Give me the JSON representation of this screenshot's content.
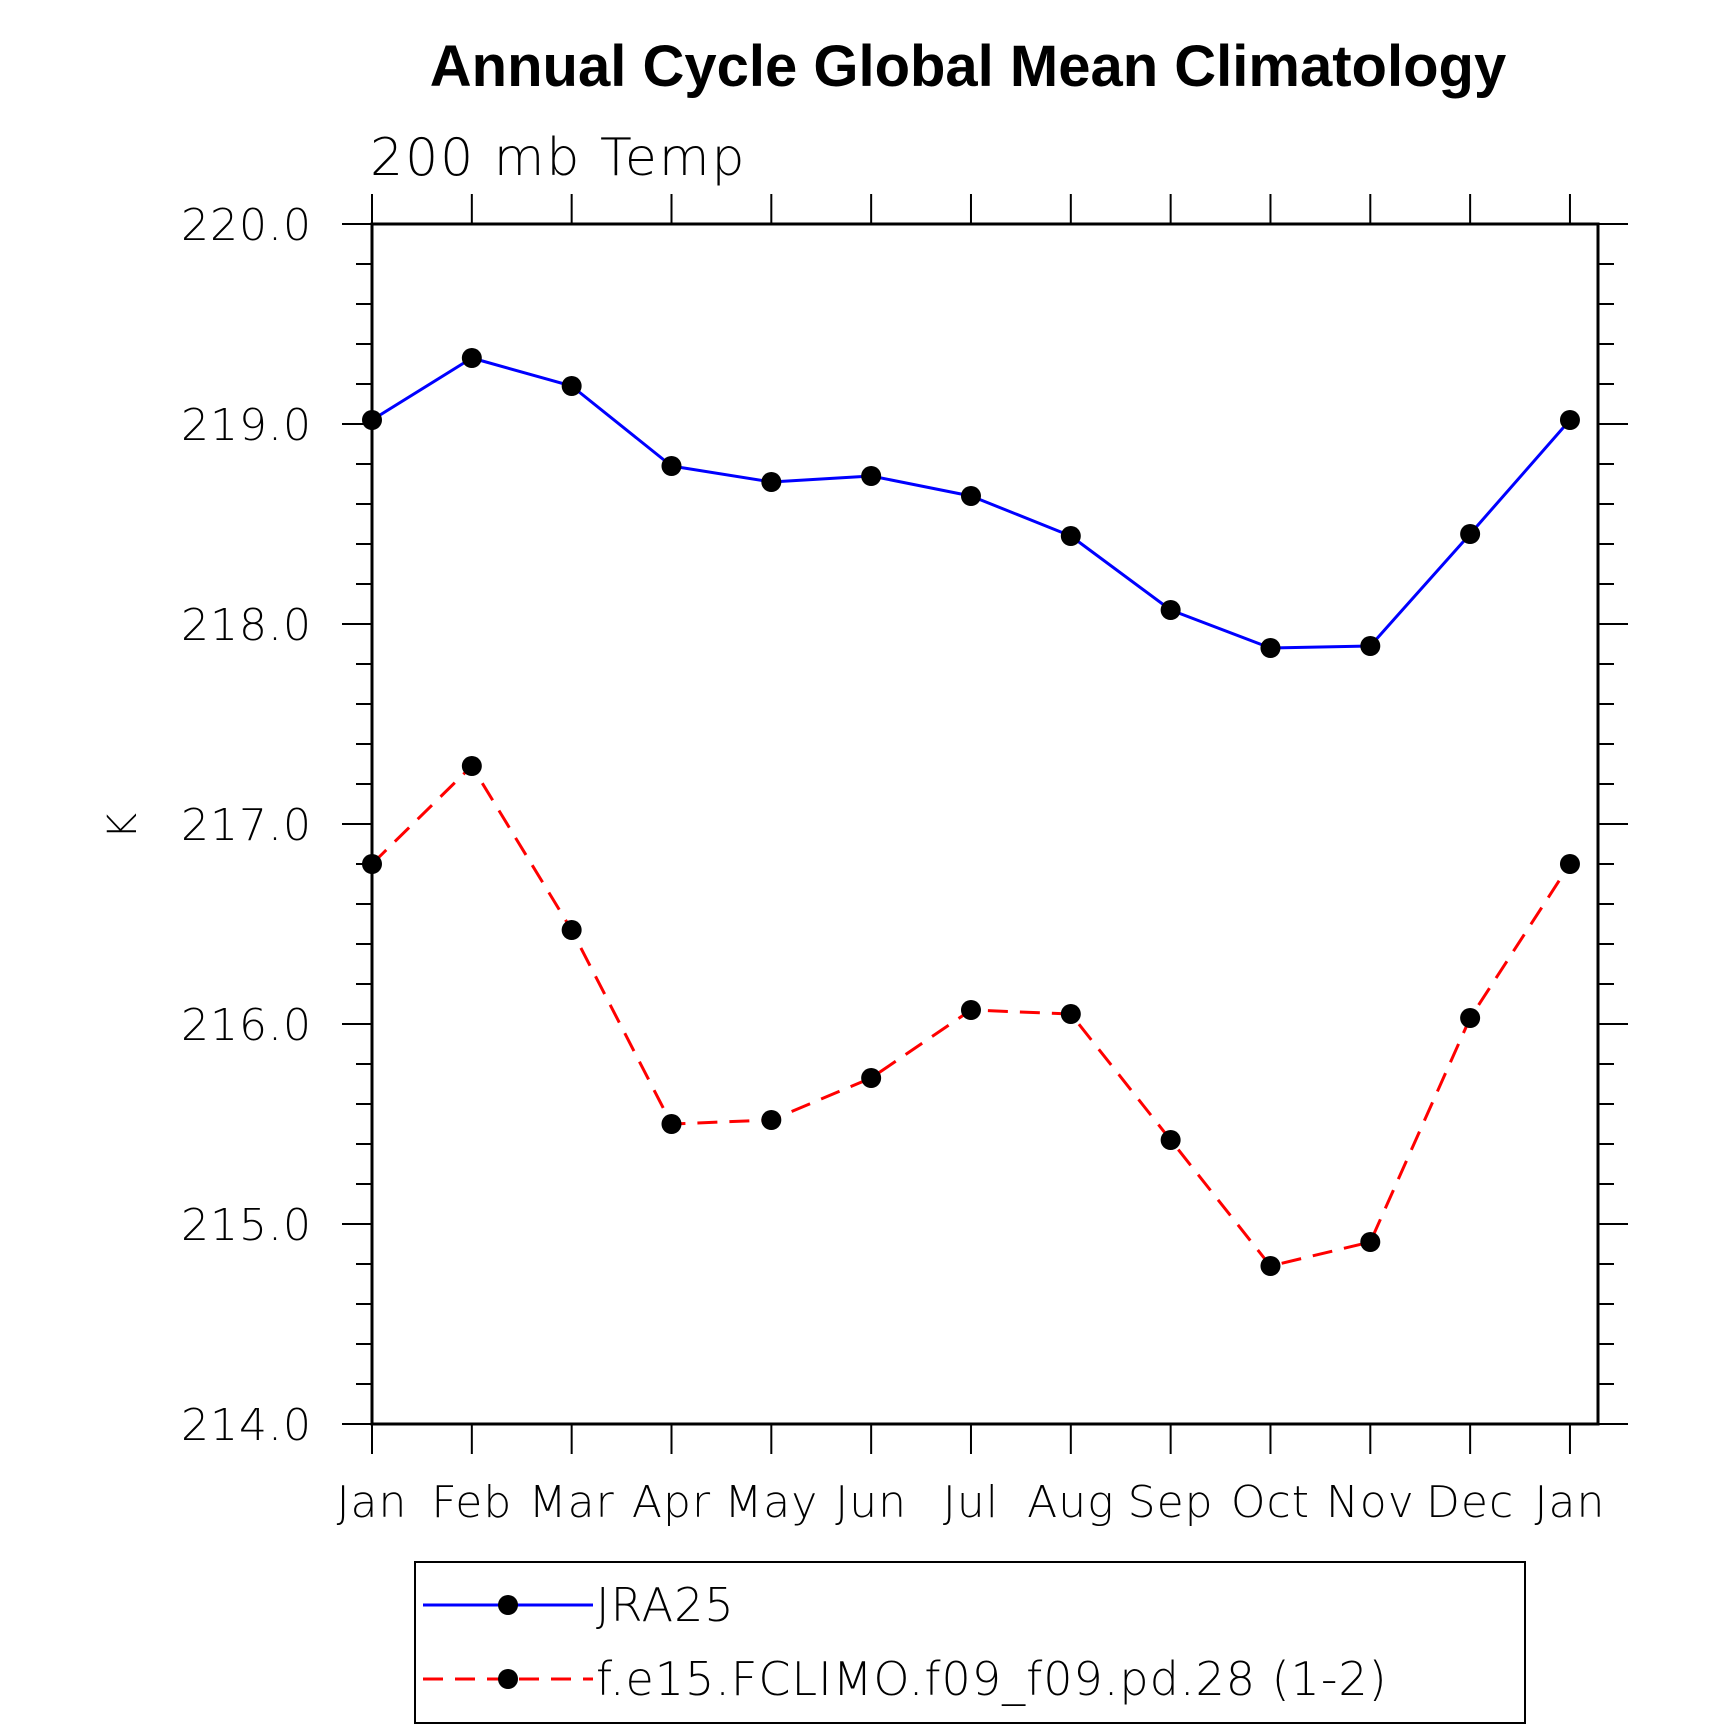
{
  "chart_data": {
    "type": "line",
    "title": "Annual Cycle Global Mean Climatology",
    "subtitle": "200 mb Temp",
    "ylabel": "K",
    "xlabel": "",
    "categories": [
      "Jan",
      "Feb",
      "Mar",
      "Apr",
      "May",
      "Jun",
      "Jul",
      "Aug",
      "Sep",
      "Oct",
      "Nov",
      "Dec",
      "Jan"
    ],
    "ylim": [
      214.0,
      220.0
    ],
    "yticks": [
      "214.0",
      "215.0",
      "216.0",
      "217.0",
      "218.0",
      "219.0",
      "220.0"
    ],
    "grid": false,
    "legend_position": "bottom",
    "series": [
      {
        "name": "JRA25",
        "color": "#0000ff",
        "line_style": "solid",
        "marker": "filled-circle",
        "values": [
          219.02,
          219.33,
          219.19,
          218.79,
          218.71,
          218.74,
          218.64,
          218.44,
          218.07,
          217.88,
          217.89,
          218.45,
          219.02
        ]
      },
      {
        "name": "f.e15.FCLIMO.f09_f09.pd.28 (1-2)",
        "color": "#ff0000",
        "line_style": "dashed",
        "marker": "filled-circle",
        "values": [
          216.8,
          217.29,
          216.47,
          215.5,
          215.52,
          215.73,
          216.07,
          216.05,
          215.42,
          214.79,
          214.91,
          216.03,
          216.8
        ]
      }
    ]
  }
}
